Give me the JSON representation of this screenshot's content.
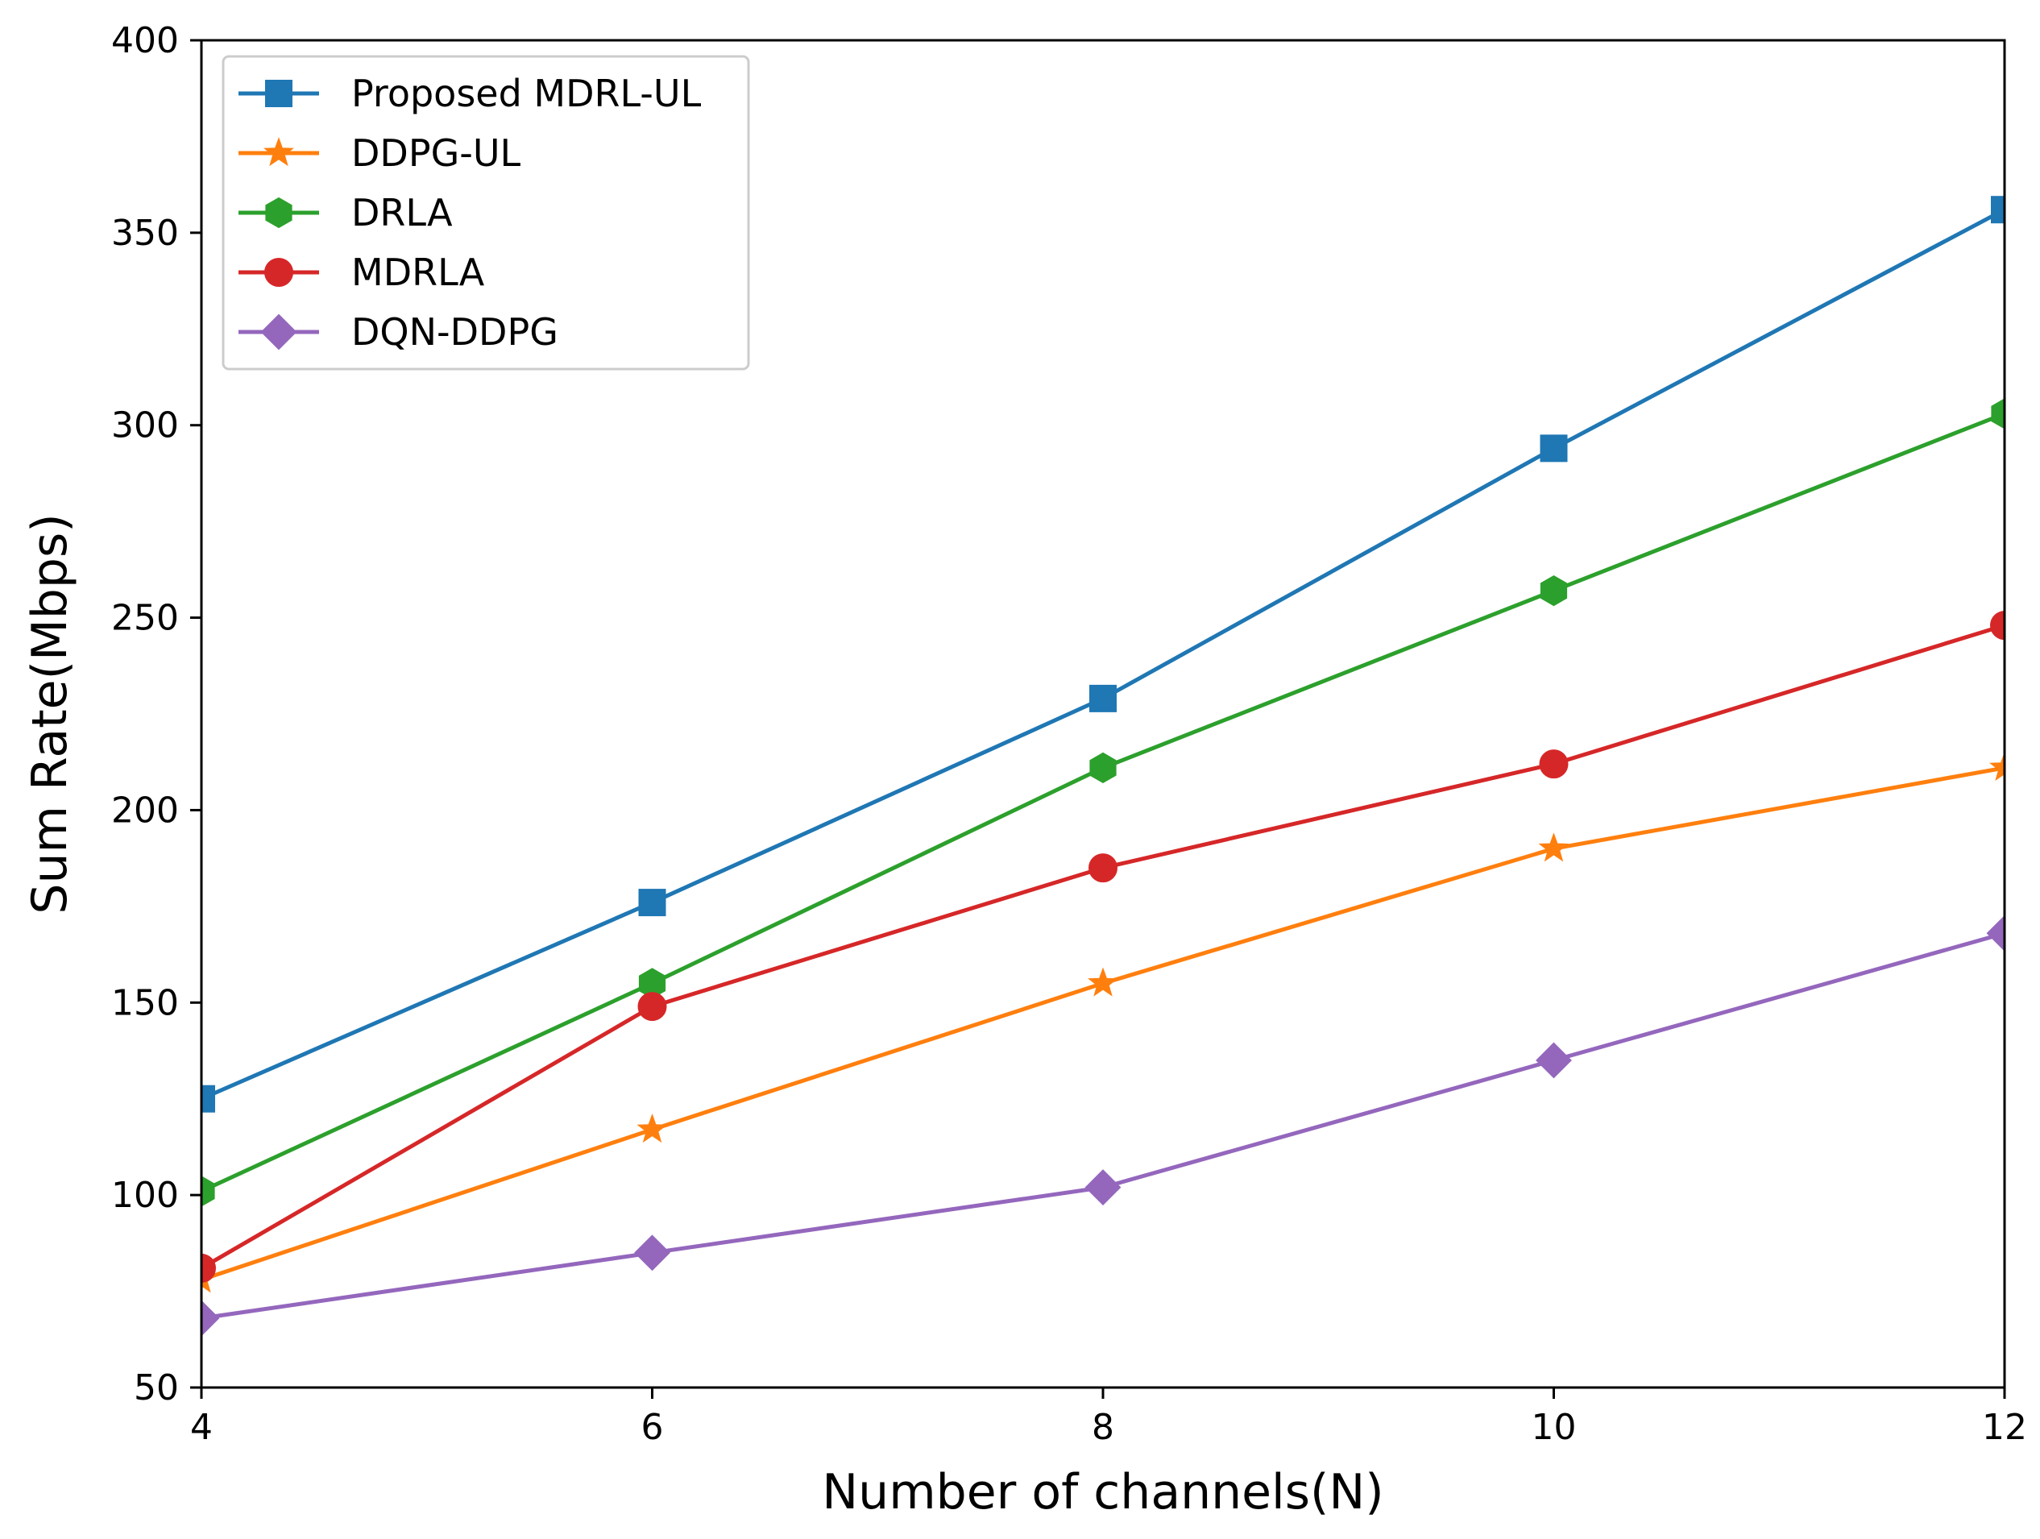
{
  "chart_data": {
    "type": "line",
    "title": "",
    "xlabel": "Number of channels(N)",
    "ylabel": "Sum Rate(Mbps)",
    "x": [
      4,
      6,
      8,
      10,
      12
    ],
    "xlim": [
      4,
      12
    ],
    "ylim": [
      50,
      400
    ],
    "xticks": [
      4,
      6,
      8,
      10,
      12
    ],
    "yticks": [
      50,
      100,
      150,
      200,
      250,
      300,
      350,
      400
    ],
    "grid": false,
    "legend_position": "top-left",
    "series": [
      {
        "name": "Proposed MDRL-UL",
        "color": "#1f77b4",
        "marker": "square",
        "values": [
          125,
          176,
          229,
          294,
          356
        ]
      },
      {
        "name": "DDPG-UL",
        "color": "#ff7f0e",
        "marker": "star",
        "values": [
          78,
          117,
          155,
          190,
          211
        ]
      },
      {
        "name": "DRLA",
        "color": "#2ca02c",
        "marker": "hexagon",
        "values": [
          101,
          155,
          211,
          257,
          303
        ]
      },
      {
        "name": "MDRLA",
        "color": "#d62728",
        "marker": "circle",
        "values": [
          81,
          149,
          185,
          212,
          248
        ]
      },
      {
        "name": "DQN-DDPG",
        "color": "#9467bd",
        "marker": "diamond",
        "values": [
          68,
          85,
          102,
          135,
          168
        ]
      }
    ]
  }
}
